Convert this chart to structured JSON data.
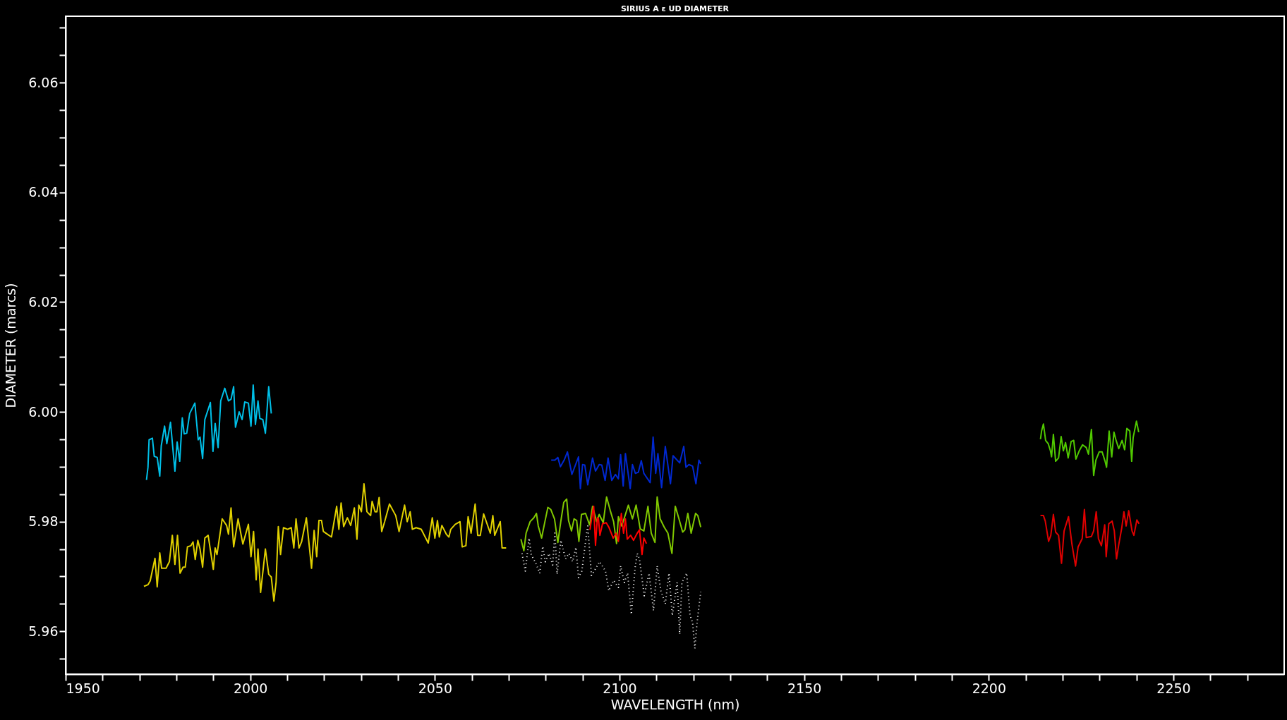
{
  "chart_data": {
    "type": "line",
    "title": "SIRIUS A ε UD DIAMETER",
    "xlabel": "WAVELENGTH (nm)",
    "ylabel": "DIAMETER (marcs)",
    "xlim": [
      1950,
      2280
    ],
    "ylim": [
      5.9522,
      6.0721
    ],
    "xticks": [
      1950,
      {
        "value": 1960,
        "label": null
      },
      {
        "value": 1970,
        "label": null
      },
      {
        "value": 1980,
        "label": null
      },
      {
        "value": 1990,
        "label": null
      },
      2000,
      {
        "value": 2010,
        "label": null
      },
      {
        "value": 2020,
        "label": null
      },
      {
        "value": 2030,
        "label": null
      },
      {
        "value": 2040,
        "label": null
      },
      2050,
      {
        "value": 2060,
        "label": null
      },
      {
        "value": 2070,
        "label": null
      },
      {
        "value": 2080,
        "label": null
      },
      {
        "value": 2090,
        "label": null
      },
      2100,
      {
        "value": 2110,
        "label": null
      },
      {
        "value": 2120,
        "label": null
      },
      {
        "value": 2130,
        "label": null
      },
      {
        "value": 2140,
        "label": null
      },
      2150,
      {
        "value": 2160,
        "label": null
      },
      {
        "value": 2170,
        "label": null
      },
      {
        "value": 2180,
        "label": null
      },
      {
        "value": 2190,
        "label": null
      },
      2200,
      {
        "value": 2210,
        "label": null
      },
      {
        "value": 2220,
        "label": null
      },
      {
        "value": 2230,
        "label": null
      },
      {
        "value": 2240,
        "label": null
      },
      2250,
      {
        "value": 2260,
        "label": null
      },
      {
        "value": 2270,
        "label": null
      }
    ],
    "yticks": [
      {
        "value": 5.955,
        "label": null
      },
      5.96,
      {
        "value": 5.965,
        "label": null
      },
      {
        "value": 5.97,
        "label": null
      },
      {
        "value": 5.975,
        "label": null
      },
      5.98,
      {
        "value": 5.985,
        "label": null
      },
      {
        "value": 5.99,
        "label": null
      },
      {
        "value": 5.995,
        "label": null
      },
      {
        "value": 6,
        "label": "6.00"
      },
      {
        "value": 6.005,
        "label": null
      },
      {
        "value": 6.01,
        "label": null
      },
      {
        "value": 6.015,
        "label": null
      },
      6.02,
      {
        "value": 6.025,
        "label": null
      },
      {
        "value": 6.03,
        "label": null
      },
      {
        "value": 6.035,
        "label": null
      },
      6.04,
      {
        "value": 6.045,
        "label": null
      },
      {
        "value": 6.05,
        "label": null
      },
      {
        "value": 6.055,
        "label": null
      },
      6.06,
      {
        "value": 6.065,
        "label": null
      },
      {
        "value": 6.07,
        "label": null
      }
    ],
    "grid": false,
    "legend": false,
    "marker": "none",
    "series": [
      {
        "color": "#00c0e8",
        "x": [
          1971.9,
          1972.3,
          1972.6,
          1973.5,
          1974.0,
          1974.8,
          1975.5,
          1975.9,
          1976.8,
          1977.4,
          1978.4,
          1979.6,
          1980.2,
          1980.9,
          1981.6,
          1982.1,
          1982.8,
          1983.6,
          1985.0,
          1985.9,
          1986.4,
          1987.1,
          1987.7,
          1989.2,
          1989.9,
          1990.5,
          1991.3,
          1992.0,
          1993.1,
          1994.1,
          1994.8,
          1995.5,
          1996.0,
          1997.0,
          1997.8,
          1998.5,
          1999.5,
          2000.2,
          2000.8,
          2001.4,
          2002.1,
          2002.6,
          2003.4,
          2004.1,
          2005.0,
          2005.7
        ],
        "values": [
          5.9876,
          5.9899,
          5.9949,
          5.9952,
          5.9919,
          5.9917,
          5.9883,
          5.9938,
          5.9974,
          5.9942,
          5.9981,
          5.9892,
          5.9945,
          5.991,
          5.9989,
          5.996,
          5.9961,
          5.9997,
          6.0016,
          5.9949,
          5.9954,
          5.9915,
          5.9986,
          6.0017,
          5.9928,
          5.9979,
          5.9935,
          6.002,
          6.0043,
          6.002,
          6.0023,
          6.0046,
          5.9972,
          6.0,
          5.9986,
          6.0018,
          6.0016,
          5.9974,
          6.0049,
          5.9977,
          6.002,
          5.9988,
          5.9986,
          5.9961,
          6.0046,
          5.9997
        ]
      },
      {
        "color": "#e0d000",
        "x": [
          1971.2,
          1972.3,
          1972.9,
          1974.2,
          1974.8,
          1975.5,
          1976.0,
          1977.2,
          1978.1,
          1978.9,
          1979.6,
          1980.3,
          1981.0,
          1981.8,
          1982.4,
          1983.0,
          1983.9,
          1984.5,
          1985.1,
          1985.8,
          1986.4,
          1987.1,
          1987.7,
          1988.6,
          1990.0,
          1990.5,
          1991.0,
          1992.4,
          1993.6,
          1994.1,
          1994.8,
          1995.5,
          1996.7,
          1998.0,
          1999.5,
          2000.2,
          2000.9,
          2001.6,
          2002.1,
          2002.8,
          2004.1,
          2005.0,
          2005.7,
          2006.4,
          2007.0,
          2007.6,
          2008.2,
          2009.0,
          2010.1,
          2011.1,
          2011.8,
          2012.4,
          2013.2,
          2013.9,
          2015.2,
          2016.6,
          2017.3,
          2018.0,
          2018.6,
          2019.3,
          2019.8,
          2020.9,
          2022.0,
          2023.4,
          2024.0,
          2024.6,
          2025.3,
          2026.3,
          2027.2,
          2028.2,
          2028.9,
          2029.4,
          2030.1,
          2030.8,
          2031.6,
          2032.6,
          2033.0,
          2033.8,
          2034.3,
          2034.9,
          2035.6,
          2036.4,
          2037.7,
          2039.4,
          2040.3,
          2041.8,
          2042.5,
          2043.3,
          2043.9,
          2044.9,
          2046.3,
          2048.2,
          2049.3,
          2050.0,
          2050.7,
          2051.2,
          2051.9,
          2053.1,
          2053.8,
          2054.3,
          2055.5,
          2056.8,
          2057.4,
          2058.4,
          2059.0,
          2059.8,
          2060.9,
          2061.6,
          2062.3,
          2063.2,
          2065.0,
          2065.7,
          2066.2,
          2067.7,
          2068.2,
          2069.3
        ],
        "values": [
          5.9682,
          5.9685,
          5.9692,
          5.9733,
          5.9681,
          5.9743,
          5.9715,
          5.9715,
          5.9727,
          5.9775,
          5.9722,
          5.9775,
          5.9706,
          5.9717,
          5.9717,
          5.9754,
          5.9756,
          5.9763,
          5.9731,
          5.9766,
          5.975,
          5.9717,
          5.977,
          5.9775,
          5.9713,
          5.9752,
          5.974,
          5.9805,
          5.9793,
          5.9777,
          5.9825,
          5.9754,
          5.9805,
          5.9759,
          5.9795,
          5.9736,
          5.9782,
          5.9694,
          5.975,
          5.9671,
          5.975,
          5.9704,
          5.9699,
          5.9655,
          5.969,
          5.9791,
          5.974,
          5.9789,
          5.9786,
          5.9789,
          5.9752,
          5.9805,
          5.9752,
          5.9763,
          5.9807,
          5.9715,
          5.9784,
          5.9736,
          5.9802,
          5.9802,
          5.9782,
          5.9777,
          5.9772,
          5.9828,
          5.9786,
          5.9834,
          5.9791,
          5.9807,
          5.9793,
          5.9825,
          5.9768,
          5.983,
          5.9818,
          5.9869,
          5.9818,
          5.9811,
          5.9837,
          5.9818,
          5.9818,
          5.9844,
          5.9782,
          5.98,
          5.9832,
          5.9811,
          5.9782,
          5.983,
          5.98,
          5.9818,
          5.9786,
          5.9789,
          5.9786,
          5.9761,
          5.9807,
          5.977,
          5.9802,
          5.9772,
          5.9793,
          5.9777,
          5.9772,
          5.9786,
          5.9795,
          5.98,
          5.9754,
          5.9756,
          5.9809,
          5.9779,
          5.9832,
          5.9775,
          5.9775,
          5.9814,
          5.9779,
          5.9811,
          5.9775,
          5.98,
          5.9752,
          5.9752
        ]
      },
      {
        "color": "#ffffff",
        "line_style": "dotted",
        "x": [
          2073.6,
          2074.5,
          2075.5,
          2076.1,
          2077.4,
          2078.4,
          2079.2,
          2079.9,
          2080.9,
          2081.9,
          2082.5,
          2083.1,
          2084.1,
          2085.4,
          2086.3,
          2087.3,
          2088.2,
          2088.9,
          2089.8,
          2091.1,
          2091.4,
          2092.4,
          2093.6,
          2094.6,
          2096.2,
          2097.1,
          2098.4,
          2099.7,
          2100.3,
          2101.3,
          2102.2,
          2103.2,
          2104.2,
          2104.8,
          2105.4,
          2106.7,
          2108.0,
          2109.2,
          2110.2,
          2111.2,
          2112.4,
          2113.4,
          2114.3,
          2115.6,
          2116.3,
          2116.9,
          2118.2,
          2119.1,
          2119.8,
          2120.4,
          2121.0,
          2122.0
        ],
        "values": [
          5.9742,
          5.971,
          5.977,
          5.974,
          5.9723,
          5.9706,
          5.9755,
          5.9727,
          5.9742,
          5.9721,
          5.9779,
          5.9704,
          5.9766,
          5.9732,
          5.9742,
          5.9727,
          5.9753,
          5.9698,
          5.971,
          5.9779,
          5.9792,
          5.9702,
          5.9715,
          5.9727,
          5.971,
          5.9674,
          5.9693,
          5.968,
          5.9719,
          5.9689,
          5.9706,
          5.9631,
          5.9715,
          5.9742,
          5.9732,
          5.9665,
          5.9706,
          5.9638,
          5.9719,
          5.9674,
          5.965,
          5.9706,
          5.9629,
          5.9689,
          5.9595,
          5.9689,
          5.9706,
          5.9629,
          5.9616,
          5.9569,
          5.9616,
          5.9672
        ]
      },
      {
        "color": "#0028d0",
        "x": [
          2081.5,
          2082.5,
          2083.3,
          2084.0,
          2085.0,
          2085.9,
          2087.1,
          2088.9,
          2089.4,
          2090.0,
          2090.6,
          2091.4,
          2092.7,
          2093.5,
          2094.5,
          2095.2,
          2096.1,
          2096.9,
          2097.9,
          2098.9,
          2099.7,
          2100.3,
          2101.0,
          2101.6,
          2102.9,
          2103.5,
          2104.3,
          2105.1,
          2105.9,
          2106.6,
          2108.3,
          2109.1,
          2109.8,
          2110.4,
          2111.4,
          2112.4,
          2113.8,
          2114.5,
          2116.3,
          2117.4,
          2118.0,
          2118.8,
          2119.8,
          2120.7,
          2121.5,
          2122.0
        ],
        "values": [
          5.9912,
          5.9912,
          5.9917,
          5.99,
          5.9912,
          5.9927,
          5.9886,
          5.9918,
          5.986,
          5.9904,
          5.9903,
          5.9867,
          5.9916,
          5.9892,
          5.9904,
          5.9903,
          5.9875,
          5.9916,
          5.9875,
          5.9886,
          5.9878,
          5.9922,
          5.9865,
          5.9924,
          5.986,
          5.9904,
          5.9888,
          5.989,
          5.9911,
          5.9888,
          5.9871,
          5.9954,
          5.9888,
          5.9924,
          5.9862,
          5.9937,
          5.9869,
          5.992,
          5.9907,
          5.9937,
          5.9899,
          5.9904,
          5.9901,
          5.9869,
          5.9912,
          5.9905
        ]
      },
      {
        "color": "#80c800",
        "x": [
          2073.3,
          2074.1,
          2074.7,
          2075.8,
          2076.8,
          2077.5,
          2078.0,
          2078.9,
          2079.8,
          2080.6,
          2081.4,
          2082.4,
          2083.3,
          2084.1,
          2084.9,
          2085.7,
          2086.2,
          2087.0,
          2087.7,
          2088.4,
          2089.0,
          2089.7,
          2090.8,
          2091.9,
          2092.7,
          2093.8,
          2094.5,
          2095.6,
          2096.5,
          2097.5,
          2098.4,
          2099.2,
          2099.7,
          2100.6,
          2101.6,
          2102.4,
          2103.5,
          2104.5,
          2105.6,
          2106.6,
          2107.7,
          2108.6,
          2109.6,
          2110.2,
          2111.0,
          2112.1,
          2113.1,
          2114.2,
          2115.1,
          2116.1,
          2117.1,
          2117.7,
          2118.5,
          2119.4,
          2120.6,
          2121.2,
          2122.0
        ],
        "values": [
          5.9768,
          5.9747,
          5.9779,
          5.98,
          5.9807,
          5.9815,
          5.9792,
          5.977,
          5.98,
          5.9826,
          5.9822,
          5.9805,
          5.9762,
          5.98,
          5.9835,
          5.9841,
          5.9802,
          5.9783,
          5.9805,
          5.9802,
          5.9764,
          5.9813,
          5.9815,
          5.9794,
          5.9828,
          5.98,
          5.9813,
          5.9798,
          5.9845,
          5.982,
          5.98,
          5.976,
          5.9809,
          5.9792,
          5.9813,
          5.983,
          5.9805,
          5.983,
          5.9787,
          5.9783,
          5.9828,
          5.9779,
          5.9762,
          5.9845,
          5.9805,
          5.979,
          5.9779,
          5.9742,
          5.9828,
          5.9805,
          5.9781,
          5.9785,
          5.9815,
          5.9779,
          5.9815,
          5.9811,
          5.979
        ]
      },
      {
        "color": "#ff0000",
        "x": [
          2092.0,
          2092.7,
          2093.0,
          2093.5,
          2094.0,
          2094.3,
          2094.7,
          2095.4,
          2096.4,
          2097.1,
          2098.3,
          2099.1,
          2099.7,
          2100.5,
          2101.1,
          2101.6,
          2102.1,
          2103.0,
          2103.8,
          2104.8,
          2105.4,
          2106.1,
          2106.6,
          2107.3
        ],
        "values": [
          5.9785,
          5.9817,
          5.9828,
          5.9757,
          5.9807,
          5.9805,
          5.9775,
          5.9796,
          5.9798,
          5.979,
          5.977,
          5.9779,
          5.9764,
          5.9815,
          5.9779,
          5.9805,
          5.9768,
          5.9775,
          5.9766,
          5.9779,
          5.9785,
          5.974,
          5.977,
          5.976
        ]
      },
      {
        "color": "#50c800",
        "x": [
          2214.0,
          2214.3,
          2214.8,
          2215.4,
          2216.1,
          2216.7,
          2217.0,
          2217.5,
          2218.1,
          2218.9,
          2219.6,
          2220.2,
          2220.8,
          2221.5,
          2222.3,
          2223.0,
          2223.6,
          2224.5,
          2225.4,
          2226.4,
          2227.0,
          2227.8,
          2228.4,
          2229.0,
          2229.9,
          2230.7,
          2231.5,
          2231.9,
          2232.6,
          2233.3,
          2233.9,
          2234.4,
          2235.2,
          2236.1,
          2236.8,
          2237.4,
          2238.2,
          2238.7,
          2239.1,
          2240.0,
          2240.6
        ],
        "values": [
          5.995,
          5.9965,
          5.9978,
          5.9948,
          5.9942,
          5.9929,
          5.9918,
          5.9959,
          5.991,
          5.9916,
          5.9955,
          5.9929,
          5.9944,
          5.9916,
          5.9946,
          5.9948,
          5.9914,
          5.9929,
          5.994,
          5.9935,
          5.9923,
          5.9968,
          5.9884,
          5.9912,
          5.9927,
          5.9927,
          5.991,
          5.9899,
          5.9965,
          5.9918,
          5.9963,
          5.995,
          5.9933,
          5.9948,
          5.9931,
          5.997,
          5.9965,
          5.991,
          5.9953,
          5.9983,
          5.9963
        ]
      },
      {
        "color": "#e00000",
        "x": [
          2214.0,
          2214.8,
          2215.3,
          2216.2,
          2216.8,
          2217.5,
          2218.1,
          2218.9,
          2219.7,
          2220.4,
          2221.6,
          2222.5,
          2223.5,
          2224.2,
          2225.3,
          2225.9,
          2226.4,
          2227.8,
          2228.4,
          2229.1,
          2229.7,
          2230.5,
          2231.4,
          2231.8,
          2232.5,
          2233.4,
          2234.0,
          2234.6,
          2235.2,
          2236.0,
          2236.6,
          2237.2,
          2237.9,
          2238.8,
          2239.3,
          2240.1,
          2240.7
        ],
        "values": [
          5.9811,
          5.9811,
          5.9801,
          5.9764,
          5.9775,
          5.9813,
          5.9781,
          5.9775,
          5.9724,
          5.9783,
          5.9809,
          5.976,
          5.9719,
          5.9754,
          5.9769,
          5.9822,
          5.9771,
          5.9773,
          5.9783,
          5.9818,
          5.9769,
          5.9756,
          5.9794,
          5.9736,
          5.9796,
          5.9801,
          5.9783,
          5.9732,
          5.9758,
          5.9788,
          5.9818,
          5.9792,
          5.982,
          5.9783,
          5.9775,
          5.9803,
          5.9796
        ]
      }
    ]
  }
}
